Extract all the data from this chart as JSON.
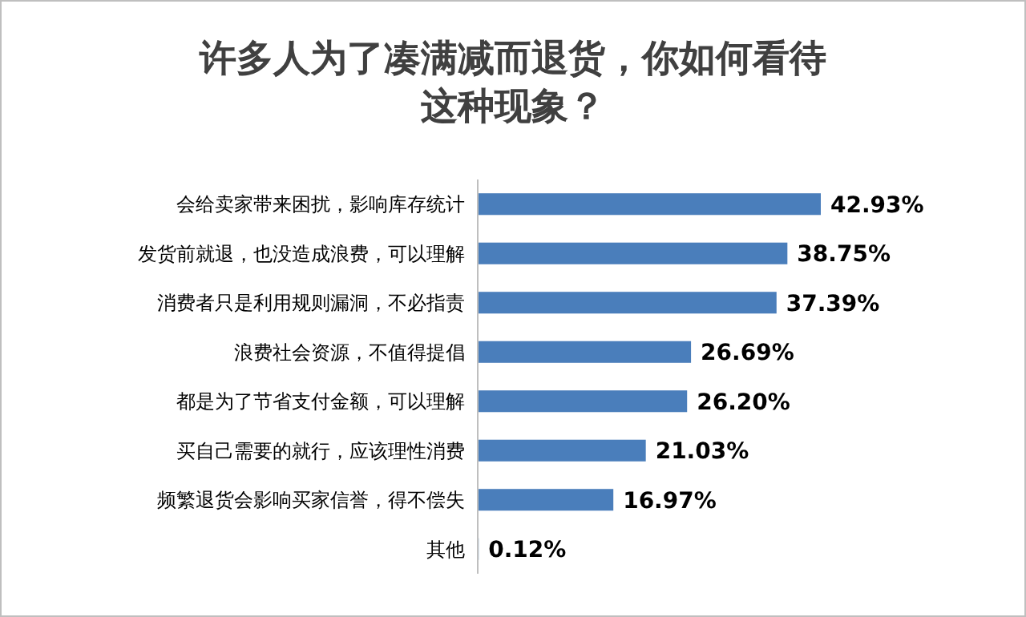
{
  "chart_data": {
    "type": "bar",
    "orientation": "horizontal",
    "title": "许多人为了凑满减而退货，你如何看待这种现象？",
    "categories": [
      "会给卖家带来困扰，影响库存统计",
      "发货前就退，也没造成浪费，可以理解",
      "消费者只是利用规则漏洞，不必指责",
      "浪费社会资源，不值得提倡",
      "都是为了节省支付金额，可以理解",
      "买自己需要的就行，应该理性消费",
      "频繁退货会影响买家信誉，得不偿失",
      "其他"
    ],
    "values": [
      42.93,
      38.75,
      37.39,
      26.69,
      26.2,
      21.03,
      16.97,
      0.12
    ],
    "value_labels": [
      "42.93%",
      "38.75%",
      "37.39%",
      "26.69%",
      "26.20%",
      "21.03%",
      "16.97%",
      "0.12%"
    ],
    "color": "#4a7ebb"
  }
}
